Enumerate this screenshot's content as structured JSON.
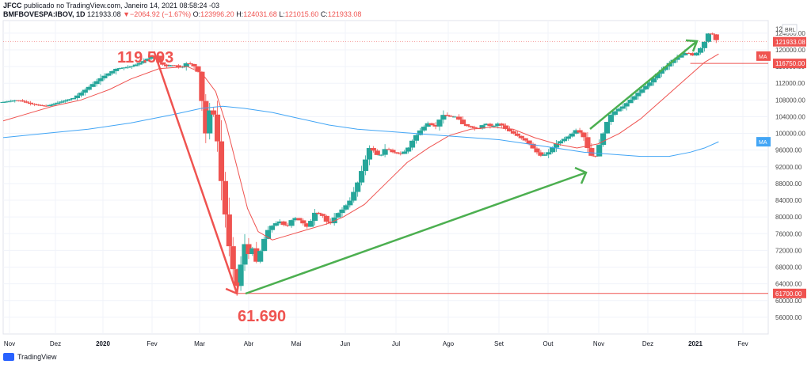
{
  "header": {
    "publisher": "JFCC",
    "published_text": "publicado no TradingView.com, Janeiro 14, 2021 08:58:24 -03",
    "symbol": "BMFBOVESPA:IBOV, 1D",
    "last": "121933.08",
    "change_arrow": "▼",
    "change": "−2064.92 (−1.67%)",
    "o_label": "O:",
    "o": "123996.20",
    "h_label": "H:",
    "h": "124031.68",
    "l_label": "L:",
    "l": "121015.60",
    "c_label": "C:",
    "c": "121933.08"
  },
  "footer": {
    "brand": "TradingView"
  },
  "colors": {
    "up": "#26a69a",
    "down": "#ef5350",
    "ma_short": "#ef5350",
    "ma_long": "#42a5f5",
    "annotation_red": "#ef5350",
    "annotation_green": "#4caf50",
    "grid": "#f0f3fa",
    "axis_text": "#4a4a4a"
  },
  "chart_data": {
    "type": "candlestick",
    "currency": "BRL",
    "ylim": [
      52000,
      127000
    ],
    "y_ticks": [
      56000,
      60000,
      64000,
      68000,
      72000,
      76000,
      80000,
      84000,
      88000,
      92000,
      96000,
      100000,
      104000,
      108000,
      112000,
      116000,
      120000,
      124000
    ],
    "y_tick_labels": [
      "56000.00",
      "60000.00",
      "64000.00",
      "68000.00",
      "72000.00",
      "76000.00",
      "80000.00",
      "84000.00",
      "88000.00",
      "92000.00",
      "96000.00",
      "100000.00",
      "104000.00",
      "108000.00",
      "112000.00",
      "116000.00",
      "120000.00",
      "124000.00"
    ],
    "top_tick_label": "12",
    "x_ticks": [
      "Nov",
      "Dez",
      "2020",
      "Fev",
      "Mar",
      "Abr",
      "Mai",
      "Jun",
      "Jul",
      "Ago",
      "Set",
      "Out",
      "Nov",
      "Dez",
      "2021",
      "Fev"
    ],
    "bold_x_ticks": [
      "2020",
      "2021"
    ],
    "price_path": [
      [
        0,
        107500
      ],
      [
        2,
        108000
      ],
      [
        4,
        107000
      ],
      [
        6,
        106500
      ],
      [
        8,
        107500
      ],
      [
        10,
        108500
      ],
      [
        12,
        111000
      ],
      [
        14,
        113500
      ],
      [
        16,
        115500
      ],
      [
        18,
        116000
      ],
      [
        19.5,
        117000
      ],
      [
        20.5,
        118000
      ],
      [
        21.3,
        119000
      ],
      [
        22,
        117000
      ],
      [
        23,
        116000
      ],
      [
        24,
        116500
      ],
      [
        25,
        115500
      ],
      [
        26,
        117000
      ],
      [
        27,
        116000
      ],
      [
        27.8,
        114000
      ],
      [
        28.2,
        104000
      ],
      [
        28.6,
        100000
      ],
      [
        29.2,
        106000
      ],
      [
        29.7,
        104500
      ],
      [
        30.2,
        99000
      ],
      [
        30.7,
        90000
      ],
      [
        31.2,
        83000
      ],
      [
        31.7,
        75000
      ],
      [
        32.2,
        70000
      ],
      [
        32.6,
        66000
      ],
      [
        33,
        63500
      ],
      [
        33.5,
        68000
      ],
      [
        34,
        74000
      ],
      [
        34.6,
        71000
      ],
      [
        35.2,
        72500
      ],
      [
        35.8,
        69000
      ],
      [
        36.5,
        73000
      ],
      [
        37.2,
        76500
      ],
      [
        38,
        78000
      ],
      [
        39,
        79000
      ],
      [
        40,
        77500
      ],
      [
        41,
        80000
      ],
      [
        42,
        79000
      ],
      [
        43,
        77500
      ],
      [
        44,
        81000
      ],
      [
        45,
        80500
      ],
      [
        46,
        78000
      ],
      [
        47,
        80500
      ],
      [
        48,
        82000
      ],
      [
        49,
        84000
      ],
      [
        50,
        88000
      ],
      [
        51,
        93000
      ],
      [
        51.8,
        97000
      ],
      [
        52.6,
        95000
      ],
      [
        53.2,
        94500
      ],
      [
        54,
        96500
      ],
      [
        55,
        95500
      ],
      [
        56,
        95000
      ],
      [
        57,
        96000
      ],
      [
        58,
        99000
      ],
      [
        59,
        101000
      ],
      [
        60,
        102500
      ],
      [
        61,
        101500
      ],
      [
        62,
        104500
      ],
      [
        63,
        104000
      ],
      [
        64,
        104000
      ],
      [
        65,
        102000
      ],
      [
        66,
        101500
      ],
      [
        67,
        101000
      ],
      [
        68,
        102500
      ],
      [
        69,
        101500
      ],
      [
        70,
        102500
      ],
      [
        71,
        101000
      ],
      [
        72,
        100000
      ],
      [
        73,
        99000
      ],
      [
        74,
        98000
      ],
      [
        75,
        96000
      ],
      [
        76,
        94500
      ],
      [
        77,
        95500
      ],
      [
        78,
        97500
      ],
      [
        79,
        98500
      ],
      [
        80,
        99500
      ],
      [
        81,
        101000
      ],
      [
        82,
        99000
      ],
      [
        82.8,
        95000
      ],
      [
        83.5,
        94000
      ],
      [
        84.5,
        99000
      ],
      [
        85.5,
        104000
      ],
      [
        86.5,
        105500
      ],
      [
        87.5,
        106500
      ],
      [
        88.5,
        108000
      ],
      [
        89.5,
        109500
      ],
      [
        90.5,
        111000
      ],
      [
        91.5,
        112500
      ],
      [
        92.5,
        114500
      ],
      [
        93.5,
        116000
      ],
      [
        94.5,
        117500
      ],
      [
        95.5,
        118500
      ],
      [
        96.5,
        119500
      ],
      [
        97.5,
        118500
      ],
      [
        98.5,
        120500
      ],
      [
        99.2,
        122500
      ],
      [
        99.7,
        124500
      ],
      [
        100.2,
        123500
      ],
      [
        100.8,
        121933
      ]
    ],
    "ma_short_path": [
      [
        0,
        103000
      ],
      [
        3,
        104500
      ],
      [
        7,
        106500
      ],
      [
        11,
        108000
      ],
      [
        15,
        110500
      ],
      [
        18,
        113000
      ],
      [
        22,
        115500
      ],
      [
        26,
        116000
      ],
      [
        28,
        114500
      ],
      [
        30,
        110000
      ],
      [
        31.5,
        102000
      ],
      [
        33,
        92000
      ],
      [
        34.5,
        82000
      ],
      [
        36,
        76500
      ],
      [
        38,
        74500
      ],
      [
        40,
        75500
      ],
      [
        43,
        77000
      ],
      [
        46,
        78500
      ],
      [
        48,
        80000
      ],
      [
        51,
        83000
      ],
      [
        54,
        88000
      ],
      [
        57,
        93000
      ],
      [
        60,
        96500
      ],
      [
        63,
        99500
      ],
      [
        66,
        101000
      ],
      [
        69,
        101500
      ],
      [
        72,
        101000
      ],
      [
        75,
        99000
      ],
      [
        78,
        97500
      ],
      [
        81,
        96500
      ],
      [
        84,
        97500
      ],
      [
        87,
        100000
      ],
      [
        90,
        103500
      ],
      [
        93,
        108000
      ],
      [
        96,
        112500
      ],
      [
        99,
        117000
      ],
      [
        101,
        119000
      ]
    ],
    "ma_long_path": [
      [
        0,
        99000
      ],
      [
        6,
        100000
      ],
      [
        12,
        101000
      ],
      [
        18,
        102500
      ],
      [
        24,
        104500
      ],
      [
        28,
        106000
      ],
      [
        31,
        106500
      ],
      [
        34,
        106000
      ],
      [
        38,
        105000
      ],
      [
        42,
        103500
      ],
      [
        46,
        102000
      ],
      [
        50,
        101000
      ],
      [
        54,
        100500
      ],
      [
        58,
        100000
      ],
      [
        62,
        99500
      ],
      [
        66,
        99000
      ],
      [
        70,
        98500
      ],
      [
        74,
        97500
      ],
      [
        78,
        96500
      ],
      [
        82,
        95500
      ],
      [
        86,
        95000
      ],
      [
        90,
        94500
      ],
      [
        94,
        94500
      ],
      [
        97,
        95500
      ],
      [
        99,
        96500
      ],
      [
        101,
        98000
      ]
    ],
    "last_price_label": "121933.08",
    "ma_short_value_label": "116750.00",
    "ma_label": "MA",
    "ma_long_label": "MA",
    "annotations": [
      {
        "kind": "text",
        "text": "119.593",
        "value": 119593
      },
      {
        "kind": "text",
        "text": "61.690",
        "value": 61690
      },
      {
        "kind": "hline",
        "value": 61700,
        "label": "61700.00"
      },
      {
        "kind": "hline",
        "value": 116750,
        "label": "116750.00"
      }
    ]
  }
}
